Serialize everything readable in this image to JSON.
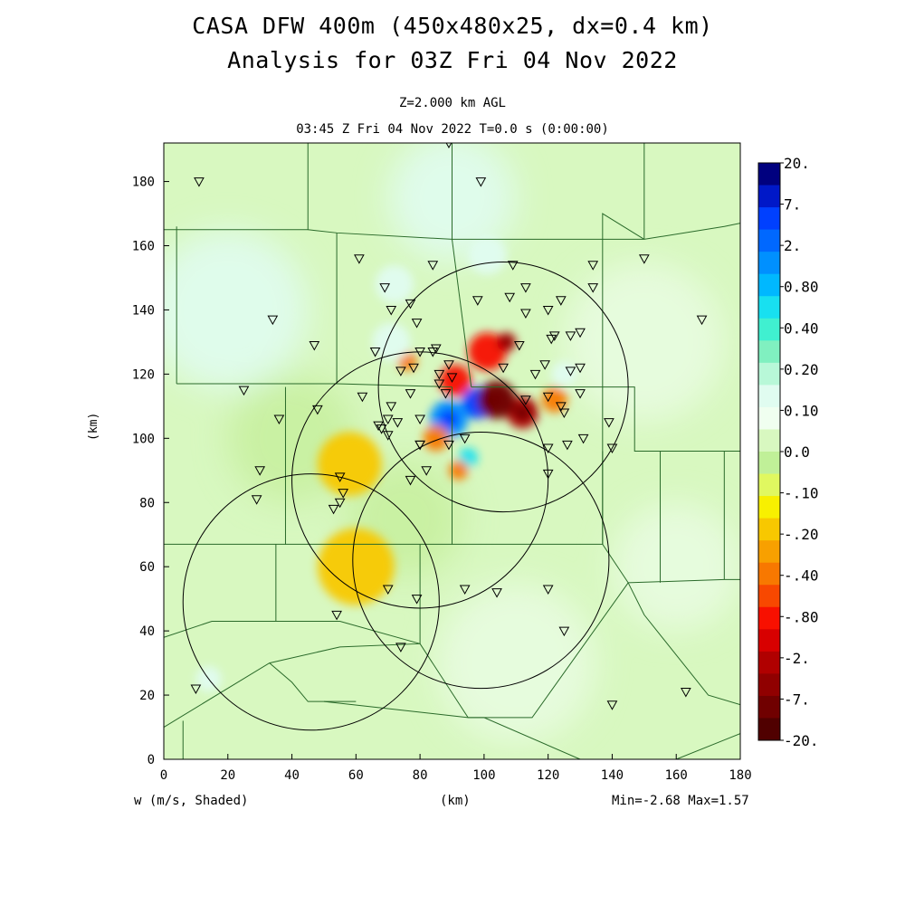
{
  "chart_data": {
    "type": "heatmap",
    "title": "CASA DFW 400m (450x480x25, dx=0.4 km)",
    "subtitle": "Analysis for 03Z Fri 04 Nov 2022",
    "level_label": "Z=2.000 km AGL",
    "time_label": "03:45 Z Fri 04 Nov 2022   T=0.0 s (0:00:00)",
    "xlabel": "(km)",
    "ylabel": "(km)",
    "variable_label": "w (m/s, Shaded)",
    "minmax_label": "Min=-2.68 Max=1.57",
    "xlim": [
      0,
      180
    ],
    "ylim": [
      0,
      192
    ],
    "x_ticks": [
      0,
      20,
      40,
      60,
      80,
      100,
      120,
      140,
      160,
      180
    ],
    "y_ticks": [
      0,
      20,
      40,
      60,
      80,
      100,
      120,
      140,
      160,
      180
    ],
    "colorbar": {
      "labels": [
        "20.",
        "7.",
        "2.",
        "0.80",
        "0.40",
        "0.20",
        "0.10",
        "0.0",
        "-.10",
        "-.20",
        "-.40",
        "-.80",
        "-2.",
        "-7.",
        "-20."
      ],
      "colors": [
        "#00007f",
        "#0018c8",
        "#0040ff",
        "#0068ff",
        "#0090ff",
        "#00b8ff",
        "#18e0f0",
        "#40f0d0",
        "#80f0c0",
        "#b8f8d8",
        "#e0fcf0",
        "#f0fff0",
        "#d8f8c0",
        "#c0f098",
        "#e0f860",
        "#f8f000",
        "#f8c800",
        "#f8a000",
        "#f87800",
        "#f84800",
        "#f81000",
        "#d80000",
        "#b00000",
        "#900000",
        "#700000",
        "#500000"
      ]
    },
    "range_rings": [
      {
        "center": [
          106,
          116
        ],
        "radius": 39
      },
      {
        "center": [
          80,
          87
        ],
        "radius": 40
      },
      {
        "center": [
          46,
          49
        ],
        "radius": 40
      },
      {
        "center": [
          99,
          62
        ],
        "radius": 40
      }
    ],
    "stations": [
      [
        89,
        192
      ],
      [
        11,
        180
      ],
      [
        99,
        180
      ],
      [
        61,
        156
      ],
      [
        84,
        154
      ],
      [
        109,
        154
      ],
      [
        134,
        154
      ],
      [
        150,
        156
      ],
      [
        69,
        147
      ],
      [
        113,
        147
      ],
      [
        134,
        147
      ],
      [
        98,
        143
      ],
      [
        108,
        144
      ],
      [
        124,
        143
      ],
      [
        77,
        142
      ],
      [
        71,
        140
      ],
      [
        113,
        139
      ],
      [
        120,
        140
      ],
      [
        34,
        137
      ],
      [
        79,
        136
      ],
      [
        168,
        137
      ],
      [
        127,
        132
      ],
      [
        122,
        132
      ],
      [
        130,
        133
      ],
      [
        121,
        131
      ],
      [
        47,
        129
      ],
      [
        111,
        129
      ],
      [
        66,
        127
      ],
      [
        85,
        128
      ],
      [
        80,
        127
      ],
      [
        84,
        127
      ],
      [
        89,
        123
      ],
      [
        119,
        123
      ],
      [
        130,
        122
      ],
      [
        106,
        122
      ],
      [
        127,
        121
      ],
      [
        78,
        122
      ],
      [
        74,
        121
      ],
      [
        86,
        120
      ],
      [
        116,
        120
      ],
      [
        90,
        119
      ],
      [
        86,
        117
      ],
      [
        77,
        114
      ],
      [
        88,
        114
      ],
      [
        130,
        114
      ],
      [
        25,
        115
      ],
      [
        113,
        112
      ],
      [
        120,
        113
      ],
      [
        62,
        113
      ],
      [
        71,
        110
      ],
      [
        124,
        110
      ],
      [
        48,
        109
      ],
      [
        125,
        108
      ],
      [
        36,
        106
      ],
      [
        70,
        106
      ],
      [
        73,
        105
      ],
      [
        80,
        106
      ],
      [
        139,
        105
      ],
      [
        67,
        104
      ],
      [
        68,
        103
      ],
      [
        70,
        101
      ],
      [
        94,
        100
      ],
      [
        131,
        100
      ],
      [
        80,
        98
      ],
      [
        89,
        98
      ],
      [
        126,
        98
      ],
      [
        120,
        97
      ],
      [
        140,
        97
      ],
      [
        80,
        98
      ],
      [
        30,
        90
      ],
      [
        82,
        90
      ],
      [
        120,
        89
      ],
      [
        77,
        87
      ],
      [
        55,
        88
      ],
      [
        56,
        83
      ],
      [
        29,
        81
      ],
      [
        55,
        80
      ],
      [
        53,
        78
      ],
      [
        70,
        53
      ],
      [
        79,
        50
      ],
      [
        94,
        53
      ],
      [
        104,
        52
      ],
      [
        120,
        53
      ],
      [
        54,
        45
      ],
      [
        125,
        40
      ],
      [
        74,
        35
      ],
      [
        10,
        22
      ],
      [
        163,
        21
      ],
      [
        140,
        17
      ]
    ],
    "updraft_cells": [
      {
        "x": 98,
        "y": 111,
        "w": 2.4,
        "r": 5
      },
      {
        "x": 89,
        "y": 106,
        "w": 1.2,
        "r": 6
      },
      {
        "x": 95,
        "y": 94,
        "w": 0.5,
        "r": 3
      },
      {
        "x": 112,
        "y": 108,
        "w": -1.2,
        "r": 5
      },
      {
        "x": 104,
        "y": 112,
        "w": -2.2,
        "r": 6
      },
      {
        "x": 101,
        "y": 127,
        "w": -0.6,
        "r": 6
      },
      {
        "x": 91,
        "y": 118,
        "w": -0.6,
        "r": 5
      },
      {
        "x": 107,
        "y": 130,
        "w": -1.0,
        "r": 3
      },
      {
        "x": 85,
        "y": 100,
        "w": -0.3,
        "r": 4
      },
      {
        "x": 92,
        "y": 90,
        "w": -0.4,
        "r": 3
      },
      {
        "x": 76,
        "y": 124,
        "w": -0.3,
        "r": 3
      },
      {
        "x": 101,
        "y": 157,
        "w": 0.2,
        "r": 6
      },
      {
        "x": 71,
        "y": 130,
        "w": 0.2,
        "r": 6
      },
      {
        "x": 72,
        "y": 148,
        "w": 0.15,
        "r": 6
      },
      {
        "x": 125,
        "y": 120,
        "w": 0.12,
        "r": 4
      },
      {
        "x": 58,
        "y": 92,
        "w": -0.15,
        "r": 10
      },
      {
        "x": 60,
        "y": 60,
        "w": -0.12,
        "r": 12
      },
      {
        "x": 14,
        "y": 25,
        "w": 0.15,
        "r": 4
      },
      {
        "x": 122,
        "y": 112,
        "w": -0.3,
        "r": 4
      }
    ]
  }
}
